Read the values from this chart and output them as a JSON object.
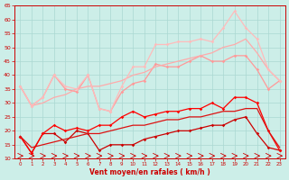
{
  "background_color": "#cceee8",
  "grid_color": "#aad8d2",
  "xlabel": "Vent moyen/en rafales ( km/h )",
  "xlabel_color": "#cc0000",
  "tick_color": "#cc0000",
  "x_ticks": [
    0,
    1,
    2,
    3,
    4,
    5,
    6,
    7,
    8,
    9,
    10,
    11,
    12,
    13,
    14,
    15,
    16,
    17,
    18,
    19,
    20,
    21,
    22,
    23
  ],
  "ylim": [
    10,
    65
  ],
  "yticks": [
    10,
    15,
    20,
    25,
    30,
    35,
    40,
    45,
    50,
    55,
    60,
    65
  ],
  "lines": [
    {
      "y": [
        18,
        12,
        19,
        19,
        16,
        20,
        19,
        13,
        15,
        15,
        15,
        17,
        18,
        19,
        20,
        20,
        21,
        22,
        22,
        24,
        25,
        19,
        14,
        13
      ],
      "color": "#cc0000",
      "lw": 0.9,
      "marker": "D",
      "ms": 1.8
    },
    {
      "y": [
        18,
        12,
        19,
        22,
        20,
        21,
        20,
        22,
        22,
        25,
        27,
        25,
        26,
        27,
        27,
        28,
        28,
        30,
        28,
        32,
        32,
        30,
        20,
        13
      ],
      "color": "#ff0000",
      "lw": 0.9,
      "marker": "D",
      "ms": 1.8
    },
    {
      "y": [
        18,
        14,
        15,
        16,
        17,
        18,
        19,
        19,
        20,
        21,
        22,
        22,
        23,
        24,
        24,
        25,
        25,
        26,
        27,
        27,
        28,
        28,
        20,
        14
      ],
      "color": "#dd1111",
      "lw": 0.9,
      "marker": null,
      "ms": 0
    },
    {
      "y": [
        36,
        29,
        32,
        40,
        35,
        34,
        40,
        28,
        27,
        34,
        37,
        38,
        44,
        43,
        43,
        45,
        47,
        45,
        45,
        47,
        47,
        42,
        35,
        38
      ],
      "color": "#ff9999",
      "lw": 0.9,
      "marker": "D",
      "ms": 1.8
    },
    {
      "y": [
        36,
        29,
        30,
        32,
        33,
        35,
        36,
        36,
        37,
        38,
        40,
        41,
        43,
        44,
        45,
        46,
        47,
        48,
        50,
        51,
        53,
        48,
        42,
        38
      ],
      "color": "#ffaaaa",
      "lw": 0.9,
      "marker": null,
      "ms": 0
    },
    {
      "y": [
        36,
        29,
        32,
        40,
        36,
        35,
        40,
        28,
        27,
        36,
        43,
        43,
        51,
        51,
        52,
        52,
        53,
        52,
        57,
        63,
        57,
        53,
        42,
        38
      ],
      "color": "#ffbbbb",
      "lw": 0.9,
      "marker": "D",
      "ms": 1.8
    }
  ]
}
